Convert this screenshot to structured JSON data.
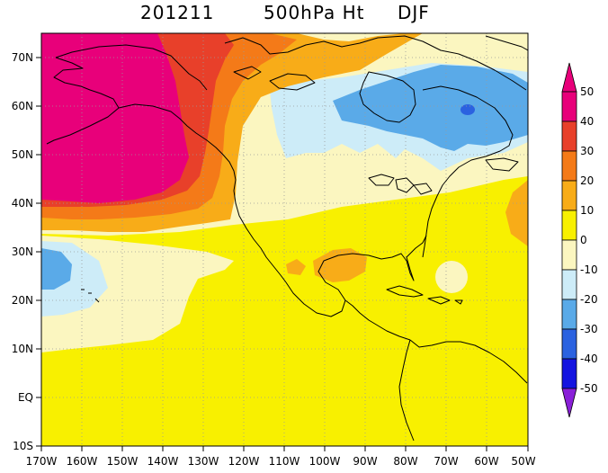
{
  "title": {
    "date": "201211",
    "variable": "500hPa Ht",
    "season": "DJF"
  },
  "map": {
    "lon_range": [
      -170,
      -50
    ],
    "lat_range": [
      -10,
      75
    ],
    "x_ticks": [
      "170W",
      "160W",
      "150W",
      "140W",
      "130W",
      "120W",
      "110W",
      "100W",
      "90W",
      "80W",
      "70W",
      "60W",
      "50W"
    ],
    "y_ticks": [
      "10S",
      "EQ",
      "10N",
      "20N",
      "30N",
      "40N",
      "50N",
      "60N",
      "70N"
    ],
    "projection": "equirectangular",
    "gridlines": "dotted"
  },
  "colorbar": {
    "labels": [
      "50",
      "40",
      "30",
      "20",
      "10",
      "0",
      "-10",
      "-20",
      "-30",
      "-40",
      "-50"
    ],
    "colors": [
      "#e8007a",
      "#e8402a",
      "#f47a18",
      "#f8ac18",
      "#f8f000",
      "#fbf6c0",
      "#cdecf8",
      "#5aaae8",
      "#2b62e0",
      "#1414e0",
      "#7a18d8"
    ],
    "top_arrow_color": "#e8007a",
    "bottom_arrow_color": "#8a20d8"
  },
  "colors": {
    "background_field": "#f8f000",
    "coastline": "#000000"
  }
}
